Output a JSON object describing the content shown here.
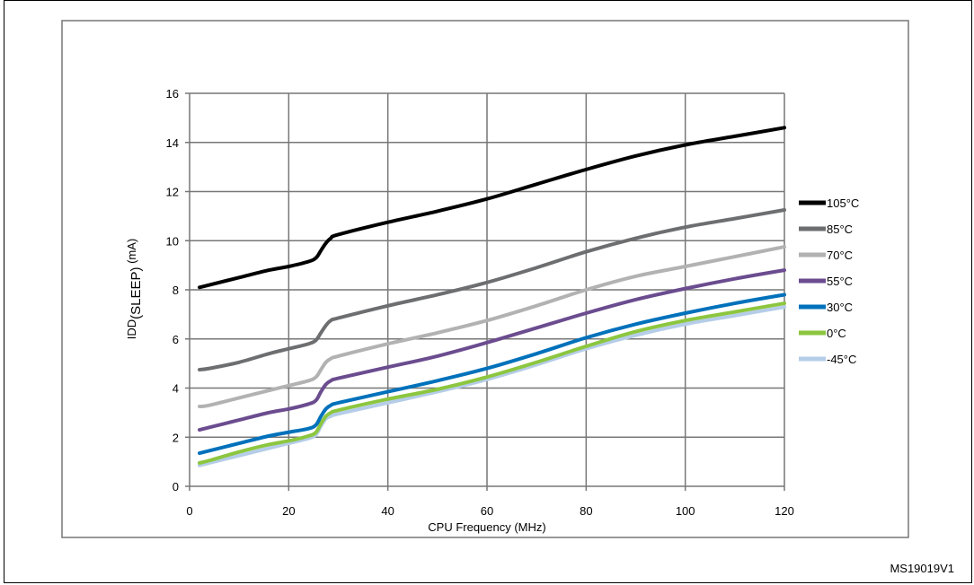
{
  "chart_data": {
    "type": "line",
    "title": "",
    "xlabel": "CPU Frequency (MHz)",
    "ylabel_main": "IDD",
    "ylabel_sub": "(SLEEP)",
    "ylabel_unit": " (mA)",
    "xlim": [
      0,
      120
    ],
    "ylim": [
      0,
      16
    ],
    "xticks": [
      0,
      20,
      40,
      60,
      80,
      100,
      120
    ],
    "yticks": [
      0,
      2,
      4,
      6,
      8,
      10,
      12,
      14,
      16
    ],
    "grid": true,
    "legend_position": "right",
    "series": [
      {
        "name": "105°C",
        "color": "#000000",
        "x": [
          2,
          4,
          10,
          16,
          20,
          24,
          25.5,
          26.5,
          27.5,
          28.5,
          30,
          40,
          50,
          60,
          70,
          80,
          90,
          100,
          110,
          120
        ],
        "y": [
          8.1,
          8.2,
          8.5,
          8.8,
          8.95,
          9.15,
          9.3,
          9.6,
          9.9,
          10.1,
          10.25,
          10.75,
          11.2,
          11.7,
          12.3,
          12.9,
          13.45,
          13.9,
          14.25,
          14.6
        ]
      },
      {
        "name": "85°C",
        "color": "#6d6e70",
        "x": [
          2,
          4,
          10,
          16,
          20,
          24,
          25.5,
          26.5,
          27.5,
          28.5,
          30,
          40,
          50,
          60,
          70,
          80,
          90,
          100,
          110,
          120
        ],
        "y": [
          4.75,
          4.8,
          5.05,
          5.4,
          5.6,
          5.8,
          5.95,
          6.25,
          6.55,
          6.75,
          6.85,
          7.35,
          7.8,
          8.3,
          8.9,
          9.55,
          10.1,
          10.55,
          10.9,
          11.25
        ]
      },
      {
        "name": "70°C",
        "color": "#b2b2b2",
        "x": [
          2,
          4,
          10,
          16,
          20,
          24,
          25.5,
          26.5,
          27.5,
          28.5,
          30,
          40,
          50,
          60,
          70,
          80,
          90,
          100,
          110,
          120
        ],
        "y": [
          3.25,
          3.3,
          3.6,
          3.9,
          4.1,
          4.3,
          4.45,
          4.75,
          5.05,
          5.2,
          5.3,
          5.8,
          6.25,
          6.75,
          7.35,
          8.0,
          8.55,
          8.95,
          9.35,
          9.75
        ]
      },
      {
        "name": "55°C",
        "color": "#6b4c8f",
        "x": [
          2,
          4,
          10,
          16,
          20,
          24,
          25.5,
          26.5,
          27.5,
          28.5,
          30,
          40,
          50,
          60,
          70,
          80,
          90,
          100,
          110,
          120
        ],
        "y": [
          2.3,
          2.4,
          2.7,
          3.0,
          3.15,
          3.35,
          3.5,
          3.85,
          4.15,
          4.3,
          4.4,
          4.85,
          5.3,
          5.85,
          6.45,
          7.05,
          7.6,
          8.05,
          8.45,
          8.8
        ]
      },
      {
        "name": "30°C",
        "color": "#0071bb",
        "x": [
          2,
          4,
          10,
          16,
          20,
          24,
          25.5,
          26.5,
          27.5,
          28.5,
          30,
          40,
          50,
          60,
          70,
          80,
          90,
          100,
          110,
          120
        ],
        "y": [
          1.35,
          1.45,
          1.75,
          2.05,
          2.2,
          2.35,
          2.5,
          2.85,
          3.15,
          3.3,
          3.4,
          3.85,
          4.3,
          4.8,
          5.4,
          6.05,
          6.6,
          7.05,
          7.45,
          7.8
        ]
      },
      {
        "name": "0°C",
        "color": "#8cc63f",
        "x": [
          2,
          4,
          10,
          16,
          20,
          24,
          25.5,
          26.5,
          27.5,
          28.5,
          30,
          40,
          50,
          60,
          70,
          80,
          90,
          100,
          110,
          120
        ],
        "y": [
          0.95,
          1.05,
          1.4,
          1.7,
          1.85,
          2.05,
          2.2,
          2.55,
          2.85,
          3.0,
          3.1,
          3.55,
          3.95,
          4.45,
          5.05,
          5.7,
          6.3,
          6.75,
          7.1,
          7.45
        ]
      },
      {
        "name": "-45°C",
        "color": "#b5cde8",
        "x": [
          2,
          4,
          10,
          16,
          20,
          24,
          25.5,
          26.5,
          27.5,
          28.5,
          30,
          40,
          50,
          60,
          70,
          80,
          90,
          100,
          110,
          120
        ],
        "y": [
          0.85,
          0.95,
          1.25,
          1.55,
          1.75,
          1.95,
          2.1,
          2.45,
          2.75,
          2.85,
          2.95,
          3.4,
          3.85,
          4.35,
          4.95,
          5.6,
          6.15,
          6.6,
          6.95,
          7.3
        ]
      }
    ]
  },
  "figure_id": "MS19019V1"
}
